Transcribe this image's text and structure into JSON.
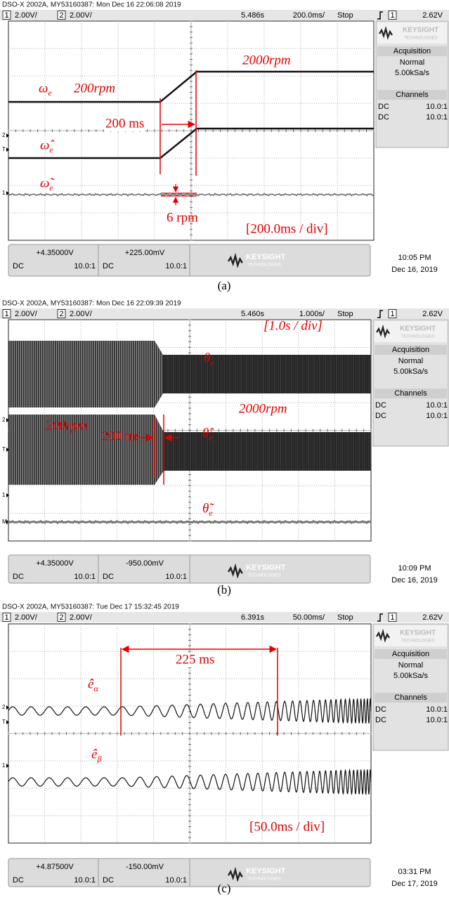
{
  "panels": [
    {
      "header": "DSO-X 2002A, MY53160387: Mon Dec 16 22:06:08 2019",
      "status": {
        "ch1": "1",
        "ch1_scale": "2.00V/",
        "ch2": "2",
        "ch2_scale": "2.00V/",
        "time_pos": "5.486s",
        "time_scale": "200.0ms/",
        "run": "Stop",
        "trig_ch": "1",
        "trig_level": "2.62V"
      },
      "sidebar": {
        "brand": "KEYSIGHT",
        "brand_sub": "TECHNOLOGIES",
        "acq_title": "Acquisition",
        "acq_mode": "Normal",
        "acq_rate": "5.00kSa/s",
        "ch_title": "Channels",
        "ch_rows": [
          [
            "DC",
            "10.0:1"
          ],
          [
            "DC",
            "10.0:1"
          ]
        ]
      },
      "footer": {
        "ch1_offset": "+4.35000V",
        "ch1_coupling": "DC",
        "ch1_probe": "10.0:1",
        "ch2_offset": "+225.00mV",
        "ch2_coupling": "DC",
        "ch2_probe": "10.0:1",
        "brand": "KEYSIGHT",
        "brand_sub": "TECHNOLOGIES",
        "time": "10:05 PM",
        "date": "Dec 16, 2019"
      },
      "markers": [
        "2",
        "T",
        "1"
      ],
      "annotations": [
        {
          "text": "ω",
          "sub": "e"
        },
        {
          "text": "200rpm"
        },
        {
          "text": "2000rpm"
        },
        {
          "text": "200 ms"
        },
        {
          "text": "ω̂",
          "sub": "e"
        },
        {
          "text": "ω̃",
          "sub": "e"
        },
        {
          "text": "6 rpm"
        },
        {
          "text": "[200.0ms / div]"
        }
      ],
      "caption": "(a)"
    },
    {
      "header": "DSO-X 2002A, MY53160387: Mon Dec 16 22:09:39 2019",
      "status": {
        "ch1": "1",
        "ch1_scale": "2.00V/",
        "ch2": "2",
        "ch2_scale": "2.00V/",
        "time_pos": "5.460s",
        "time_scale": "1.000s/",
        "run": "Stop",
        "trig_ch": "1",
        "trig_level": "2.62V"
      },
      "sidebar": {
        "brand": "KEYSIGHT",
        "brand_sub": "TECHNOLOGIES",
        "acq_title": "Acquisition",
        "acq_mode": "Normal",
        "acq_rate": "5.00kSa/s",
        "ch_title": "Channels",
        "ch_rows": [
          [
            "DC",
            "10.0:1"
          ],
          [
            "DC",
            "10.0:1"
          ]
        ]
      },
      "footer": {
        "ch1_offset": "+4.35000V",
        "ch1_coupling": "DC",
        "ch1_probe": "10.0:1",
        "ch2_offset": "-950.00mV",
        "ch2_coupling": "DC",
        "ch2_probe": "10.0:1",
        "brand": "KEYSIGHT",
        "brand_sub": "TECHNOLOGIES",
        "time": "10:09 PM",
        "date": "Dec 16, 2019"
      },
      "markers": [
        "2",
        "T",
        "1",
        "M"
      ],
      "annotations": [
        {
          "text": "[1.0s / div]"
        },
        {
          "text": "θ",
          "sub": "e"
        },
        {
          "text": "2000rpm"
        },
        {
          "text": "200rpm"
        },
        {
          "text": "200 ms"
        },
        {
          "text": "θ̂",
          "sub": "e"
        },
        {
          "text": "θ̃",
          "sub": "e"
        }
      ],
      "caption": "(b)"
    },
    {
      "header": "DSO-X 2002A, MY53160387: Tue Dec 17 15:32:45 2019",
      "status": {
        "ch1": "1",
        "ch1_scale": "2.00V/",
        "ch2": "2",
        "ch2_scale": "2.00V/",
        "time_pos": "6.391s",
        "time_scale": "50.00ms/",
        "run": "Stop",
        "trig_ch": "1",
        "trig_level": "2.62V"
      },
      "sidebar": {
        "brand": "KEYSIGHT",
        "brand_sub": "TECHNOLOGIES",
        "acq_title": "Acquisition",
        "acq_mode": "Normal",
        "acq_rate": "5.00kSa/s",
        "ch_title": "Channels",
        "ch_rows": [
          [
            "DC",
            "10.0:1"
          ],
          [
            "DC",
            "10.0:1"
          ]
        ]
      },
      "footer": {
        "ch1_offset": "+4.87500V",
        "ch1_coupling": "DC",
        "ch1_probe": "10.0:1",
        "ch2_offset": "-150.00mV",
        "ch2_coupling": "DC",
        "ch2_probe": "10.0:1",
        "brand": "KEYSIGHT",
        "brand_sub": "TECHNOLOGIES",
        "time": "03:31 PM",
        "date": "Dec 17, 2019"
      },
      "markers": [
        "2",
        "T",
        "1"
      ],
      "annotations": [
        {
          "text": "ê",
          "sub": "α"
        },
        {
          "text": "225 ms"
        },
        {
          "text": "ê",
          "sub": "β"
        },
        {
          "text": "[50.0ms / div]"
        }
      ],
      "caption": "(c)"
    }
  ]
}
